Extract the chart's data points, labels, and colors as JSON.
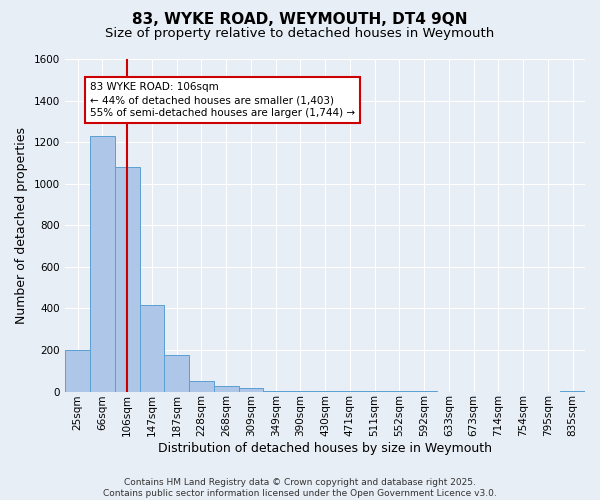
{
  "title1": "83, WYKE ROAD, WEYMOUTH, DT4 9QN",
  "title2": "Size of property relative to detached houses in Weymouth",
  "xlabel": "Distribution of detached houses by size in Weymouth",
  "ylabel": "Number of detached properties",
  "categories": [
    "25sqm",
    "66sqm",
    "106sqm",
    "147sqm",
    "187sqm",
    "228sqm",
    "268sqm",
    "309sqm",
    "349sqm",
    "390sqm",
    "430sqm",
    "471sqm",
    "511sqm",
    "552sqm",
    "592sqm",
    "633sqm",
    "673sqm",
    "714sqm",
    "754sqm",
    "795sqm",
    "835sqm"
  ],
  "values": [
    200,
    1230,
    1080,
    415,
    175,
    50,
    25,
    15,
    5,
    4,
    3,
    2,
    1,
    1,
    1,
    0,
    0,
    0,
    0,
    0,
    2
  ],
  "bar_color": "#aec6e8",
  "bar_edge_color": "#5a9fd4",
  "red_line_index": 2,
  "red_line_color": "#cc0000",
  "annotation_line1": "83 WYKE ROAD: 106sqm",
  "annotation_line2": "← 44% of detached houses are smaller (1,403)",
  "annotation_line3": "55% of semi-detached houses are larger (1,744) →",
  "annotation_box_color": "#ffffff",
  "annotation_edge_color": "#cc0000",
  "ylim": [
    0,
    1600
  ],
  "yticks": [
    0,
    200,
    400,
    600,
    800,
    1000,
    1200,
    1400,
    1600
  ],
  "background_color": "#e8eef5",
  "plot_background_color": "#e8eef5",
  "grid_color": "#ffffff",
  "footer_line1": "Contains HM Land Registry data © Crown copyright and database right 2025.",
  "footer_line2": "Contains public sector information licensed under the Open Government Licence v3.0.",
  "title_fontsize": 11,
  "subtitle_fontsize": 9.5,
  "tick_fontsize": 7.5,
  "ylabel_fontsize": 9,
  "xlabel_fontsize": 9,
  "annotation_fontsize": 7.5,
  "footer_fontsize": 6.5
}
